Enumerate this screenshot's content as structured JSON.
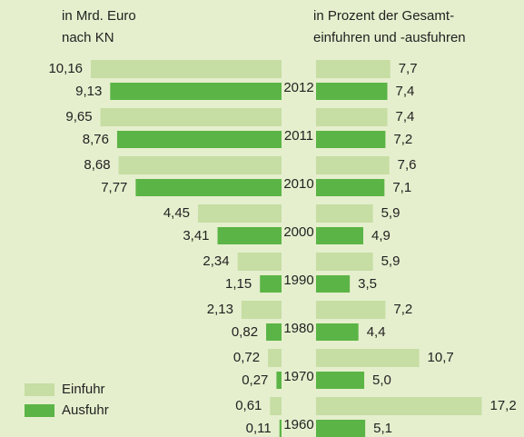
{
  "chart_data": {
    "type": "butterfly",
    "categories": [
      "2012",
      "2011",
      "2010",
      "2000",
      "1990",
      "1980",
      "1970",
      "1960"
    ],
    "series": [
      {
        "name": "Einfuhr",
        "color": "#c6dda3"
      },
      {
        "name": "Ausfuhr",
        "color": "#5bb446"
      }
    ],
    "panels": [
      {
        "title": [
          "in Mrd. Euro",
          "nach KN"
        ],
        "direction": "left",
        "xlim": [
          0,
          10.5
        ],
        "series": [
          {
            "values": [
              10.16,
              9.65,
              8.68,
              4.45,
              2.34,
              2.13,
              0.72,
              0.61
            ],
            "value_labels": [
              "10,16",
              "9,65",
              "8,68",
              "4,45",
              "2,34",
              "2,13",
              "0,72",
              "0,61"
            ]
          },
          {
            "values": [
              9.13,
              8.76,
              7.77,
              3.41,
              1.15,
              0.82,
              0.27,
              0.11
            ],
            "value_labels": [
              "9,13",
              "8,76",
              "7,77",
              "3,41",
              "1,15",
              "0,82",
              "0,27",
              "0,11"
            ]
          }
        ]
      },
      {
        "title": [
          "in Prozent der Gesamt-",
          "einfuhren und -ausfuhren"
        ],
        "direction": "right",
        "xlim": [
          0,
          18
        ],
        "series": [
          {
            "values": [
              7.7,
              7.4,
              7.6,
              5.9,
              5.9,
              7.2,
              10.7,
              17.2
            ],
            "value_labels": [
              "7,7",
              "7,4",
              "7,6",
              "5,9",
              "5,9",
              "7,2",
              "10,7",
              "17,2"
            ]
          },
          {
            "values": [
              7.4,
              7.2,
              7.1,
              4.9,
              3.5,
              4.4,
              5.0,
              5.1
            ],
            "value_labels": [
              "7,4",
              "7,2",
              "7,1",
              "4,9",
              "3,5",
              "4,4",
              "5,0",
              "5,1"
            ]
          }
        ]
      }
    ]
  }
}
